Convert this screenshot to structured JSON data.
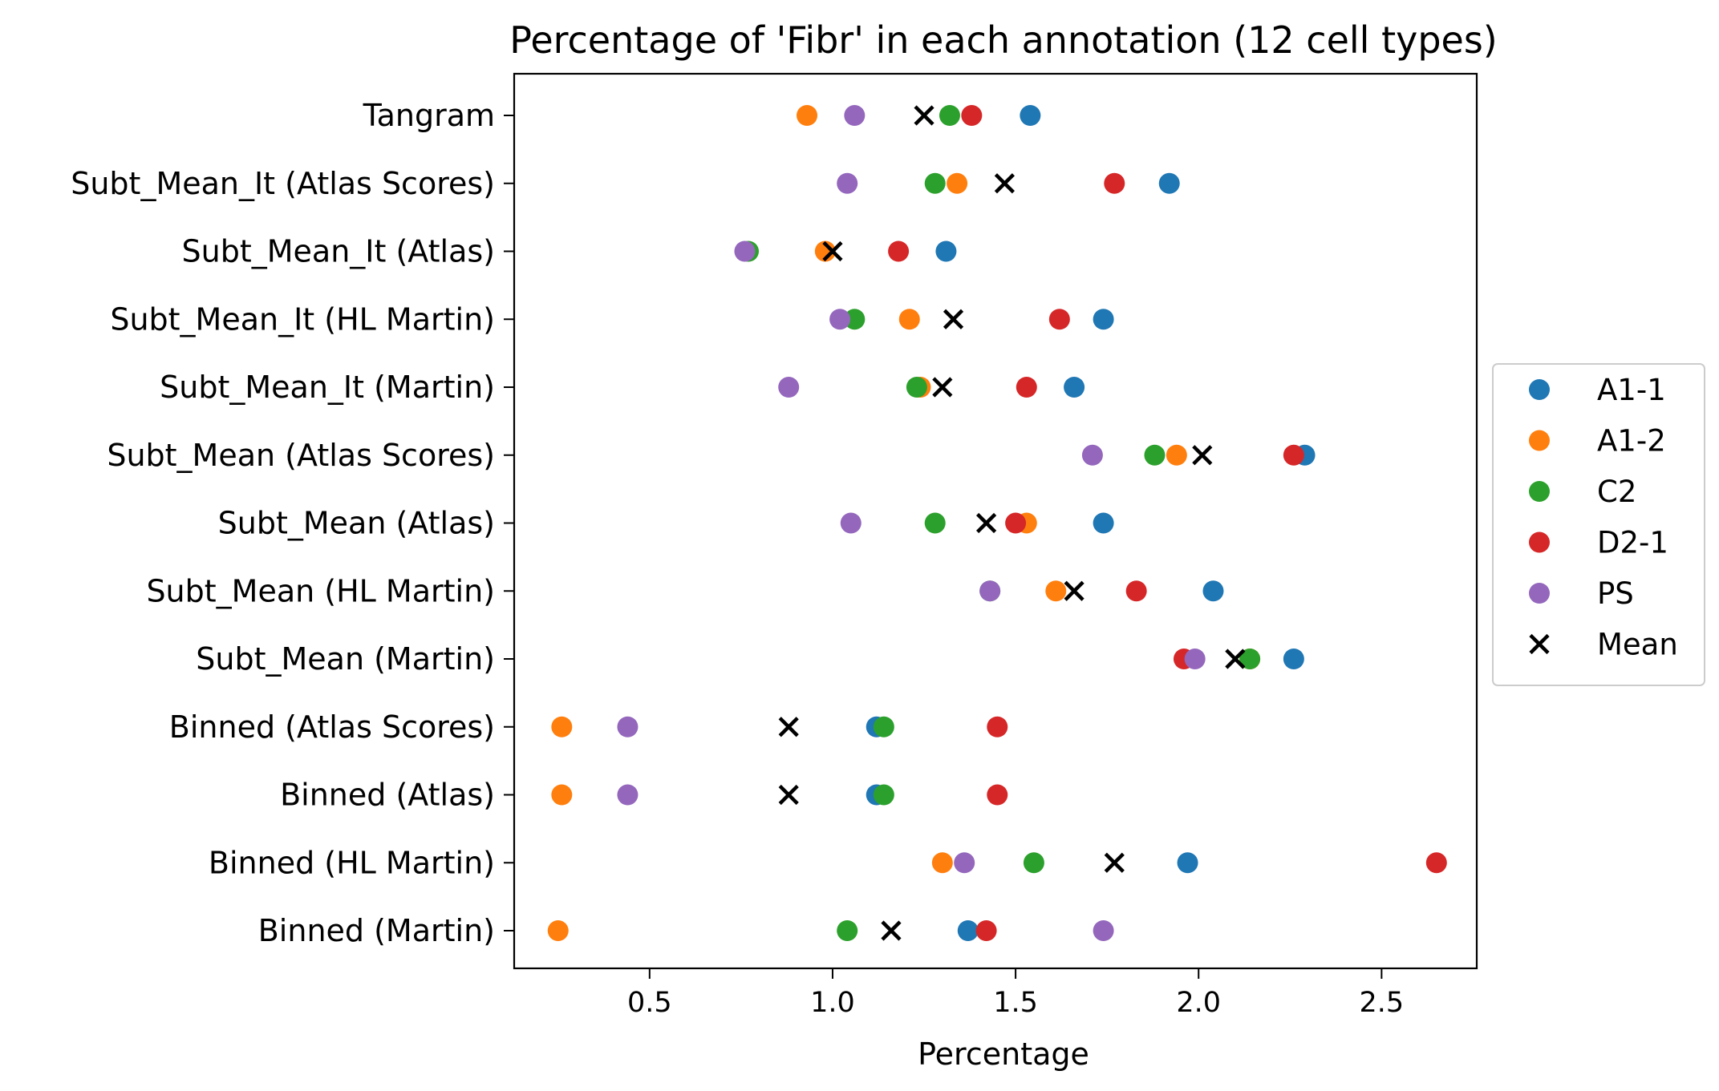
{
  "chart_data": {
    "type": "scatter",
    "title": "Percentage of 'Fibr' in each annotation (12 cell types)",
    "xlabel": "Percentage",
    "ylabel": "",
    "xlim": [
      0.13,
      2.76
    ],
    "xticks": [
      0.5,
      1.0,
      1.5,
      2.0,
      2.5
    ],
    "xtick_labels": [
      "0.5",
      "1.0",
      "1.5",
      "2.0",
      "2.5"
    ],
    "grid": false,
    "legend_position": "center-right, outside plot",
    "categories": [
      "Tangram",
      "Subt_Mean_It (Atlas Scores)",
      "Subt_Mean_It (Atlas)",
      "Subt_Mean_It (HL Martin)",
      "Subt_Mean_It (Martin)",
      "Subt_Mean (Atlas Scores)",
      "Subt_Mean (Atlas)",
      "Subt_Mean (HL Martin)",
      "Subt_Mean (Martin)",
      "Binned (Atlas Scores)",
      "Binned (Atlas)",
      "Binned (HL Martin)",
      "Binned (Martin)"
    ],
    "series": [
      {
        "name": "A1-1",
        "color": "#1f77b4",
        "marker": "circle",
        "values": [
          1.54,
          1.92,
          1.31,
          1.74,
          1.66,
          2.29,
          1.74,
          2.04,
          2.26,
          1.12,
          1.12,
          1.97,
          1.37
        ]
      },
      {
        "name": "A1-2",
        "color": "#ff7f0e",
        "marker": "circle",
        "values": [
          0.93,
          1.34,
          0.98,
          1.21,
          1.24,
          1.94,
          1.53,
          1.61,
          2.14,
          0.26,
          0.26,
          1.3,
          0.25
        ]
      },
      {
        "name": "C2",
        "color": "#2ca02c",
        "marker": "circle",
        "values": [
          1.32,
          1.28,
          0.77,
          1.06,
          1.23,
          1.88,
          1.28,
          1.43,
          2.14,
          1.14,
          1.14,
          1.55,
          1.04
        ]
      },
      {
        "name": "D2-1",
        "color": "#d62728",
        "marker": "circle",
        "values": [
          1.38,
          1.77,
          1.18,
          1.62,
          1.53,
          2.26,
          1.5,
          1.83,
          1.96,
          1.45,
          1.45,
          2.65,
          1.42
        ]
      },
      {
        "name": "PS",
        "color": "#9467bd",
        "marker": "circle",
        "values": [
          1.06,
          1.04,
          0.76,
          1.02,
          0.88,
          1.71,
          1.05,
          1.43,
          1.99,
          0.44,
          0.44,
          1.36,
          1.74
        ]
      },
      {
        "name": "Mean",
        "color": "#000000",
        "marker": "x",
        "values": [
          1.25,
          1.47,
          1.0,
          1.33,
          1.3,
          2.01,
          1.42,
          1.66,
          2.1,
          0.88,
          0.88,
          1.77,
          1.16
        ]
      }
    ]
  }
}
